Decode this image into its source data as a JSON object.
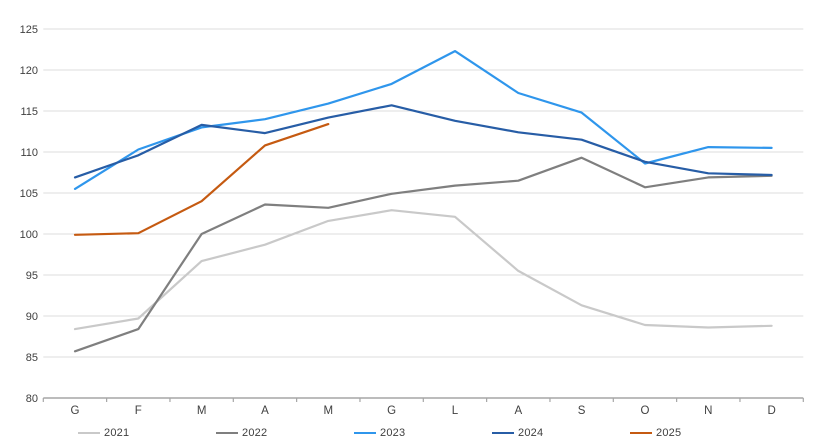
{
  "chart_data": {
    "type": "line",
    "title": "",
    "xlabel": "",
    "ylabel": "",
    "categories": [
      "G",
      "F",
      "M",
      "A",
      "M",
      "G",
      "L",
      "A",
      "S",
      "O",
      "N",
      "D"
    ],
    "series": [
      {
        "name": "2021",
        "color": "#c9c9c9",
        "values": [
          88.4,
          89.7,
          96.7,
          98.7,
          101.6,
          102.9,
          102.1,
          95.5,
          91.3,
          88.9,
          88.6,
          88.8
        ]
      },
      {
        "name": "2022",
        "color": "#7f7f7f",
        "values": [
          85.7,
          88.4,
          100.0,
          103.6,
          103.2,
          104.9,
          105.9,
          106.5,
          109.3,
          105.7,
          106.9,
          107.1
        ]
      },
      {
        "name": "2023",
        "color": "#2f96ec",
        "values": [
          105.5,
          110.3,
          113.0,
          114.0,
          115.9,
          118.3,
          122.3,
          117.2,
          114.8,
          108.6,
          110.6,
          110.5
        ]
      },
      {
        "name": "2024",
        "color": "#275da6",
        "values": [
          106.9,
          109.6,
          113.3,
          112.3,
          114.2,
          115.7,
          113.8,
          112.4,
          111.5,
          108.8,
          107.4,
          107.2
        ]
      },
      {
        "name": "2025",
        "color": "#c55a11",
        "values": [
          99.9,
          100.1,
          104.0,
          110.8,
          113.4,
          null,
          null,
          null,
          null,
          null,
          null,
          null
        ]
      }
    ],
    "ylim": [
      80,
      125
    ],
    "ytick_step": 5,
    "ytick_labels": [
      "80",
      "85",
      "90",
      "95",
      "100",
      "105",
      "110",
      "115",
      "120",
      "125"
    ],
    "grid": "horizontal",
    "gridline_color": "#dcdcdc",
    "axis_line_color": "#a6a6a6",
    "axis_text_color": "#404040",
    "legend_position": "bottom",
    "legend_labels": [
      "2021",
      "2022",
      "2023",
      "2024",
      "2025"
    ]
  }
}
